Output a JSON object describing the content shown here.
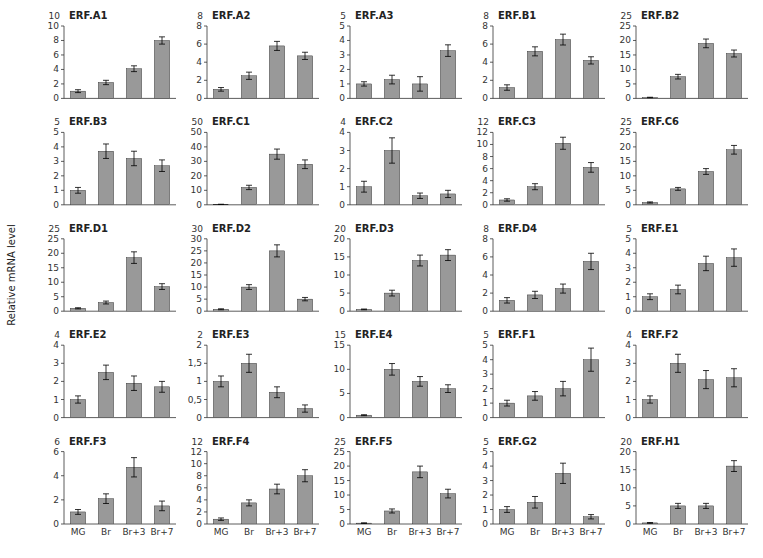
{
  "chart_data": [
    {
      "type": "bar",
      "title": "ERF.A1",
      "categories": [
        null,
        null,
        null,
        null
      ],
      "values": [
        1.0,
        2.2,
        4.1,
        8.0
      ],
      "errors": [
        0.2,
        0.3,
        0.4,
        0.5
      ],
      "color": "#999999",
      "ylim": [
        0,
        10
      ],
      "yticks": [
        0,
        2,
        4,
        6,
        8,
        10
      ]
    },
    {
      "type": "bar",
      "title": "ERF.A2",
      "categories": [
        null,
        null,
        null,
        null
      ],
      "values": [
        1.0,
        2.5,
        5.8,
        4.7
      ],
      "errors": [
        0.2,
        0.4,
        0.5,
        0.4
      ],
      "color": "#999999",
      "ylim": [
        0,
        8
      ],
      "yticks": [
        0,
        2,
        4,
        6,
        8
      ]
    },
    {
      "type": "bar",
      "title": "ERF.A3",
      "categories": [
        null,
        null,
        null,
        null
      ],
      "values": [
        1.0,
        1.3,
        1.0,
        3.3
      ],
      "errors": [
        0.15,
        0.3,
        0.5,
        0.4
      ],
      "color": "#999999",
      "ylim": [
        0,
        5
      ],
      "yticks": [
        0,
        1,
        2,
        3,
        4,
        5
      ]
    },
    {
      "type": "bar",
      "title": "ERF.B1",
      "categories": [
        null,
        null,
        null,
        null
      ],
      "values": [
        1.2,
        5.2,
        6.5,
        4.2
      ],
      "errors": [
        0.3,
        0.5,
        0.6,
        0.4
      ],
      "color": "#999999",
      "ylim": [
        0,
        8
      ],
      "yticks": [
        0,
        2,
        4,
        6,
        8
      ]
    },
    {
      "type": "bar",
      "title": "ERF.B2",
      "categories": [
        null,
        null,
        null,
        null
      ],
      "values": [
        0.3,
        7.5,
        19.0,
        15.5
      ],
      "errors": [
        0.1,
        0.8,
        1.5,
        1.2
      ],
      "color": "#999999",
      "ylim": [
        0,
        25
      ],
      "yticks": [
        0,
        5,
        10,
        15,
        20,
        25
      ]
    },
    {
      "type": "bar",
      "title": "ERF.B3",
      "categories": [
        null,
        null,
        null,
        null
      ],
      "values": [
        1.0,
        3.7,
        3.2,
        2.7
      ],
      "errors": [
        0.2,
        0.5,
        0.5,
        0.4
      ],
      "color": "#999999",
      "ylim": [
        0,
        5
      ],
      "yticks": [
        0,
        1,
        2,
        3,
        4,
        5
      ]
    },
    {
      "type": "bar",
      "title": "ERF.C1",
      "categories": [
        null,
        null,
        null,
        null
      ],
      "values": [
        0.3,
        12.0,
        35.0,
        28.0
      ],
      "errors": [
        0.1,
        1.5,
        3.5,
        3.0
      ],
      "color": "#999999",
      "ylim": [
        0,
        50
      ],
      "yticks": [
        0,
        10,
        20,
        30,
        40,
        50
      ]
    },
    {
      "type": "bar",
      "title": "ERF.C2",
      "categories": [
        null,
        null,
        null,
        null
      ],
      "values": [
        1.0,
        3.0,
        0.5,
        0.6
      ],
      "errors": [
        0.3,
        0.7,
        0.15,
        0.2
      ],
      "color": "#999999",
      "ylim": [
        0,
        4
      ],
      "yticks": [
        0,
        1,
        2,
        3,
        4
      ]
    },
    {
      "type": "bar",
      "title": "ERF.C3",
      "categories": [
        null,
        null,
        null,
        null
      ],
      "values": [
        0.8,
        3.0,
        10.2,
        6.2
      ],
      "errors": [
        0.2,
        0.5,
        1.0,
        0.8
      ],
      "color": "#999999",
      "ylim": [
        0,
        12
      ],
      "yticks": [
        0,
        2,
        4,
        6,
        8,
        10,
        12
      ]
    },
    {
      "type": "bar",
      "title": "ERF.C6",
      "categories": [
        null,
        null,
        null,
        null
      ],
      "values": [
        0.8,
        5.5,
        11.5,
        19.0
      ],
      "errors": [
        0.2,
        0.5,
        1.0,
        1.5
      ],
      "color": "#999999",
      "ylim": [
        0,
        25
      ],
      "yticks": [
        0,
        5,
        10,
        15,
        20,
        25
      ]
    },
    {
      "type": "bar",
      "title": "ERF.D1",
      "ylabel": "Relative mRNA level",
      "categories": [
        null,
        null,
        null,
        null
      ],
      "values": [
        1.0,
        3.0,
        18.5,
        8.5
      ],
      "errors": [
        0.2,
        0.5,
        2.0,
        1.0
      ],
      "color": "#999999",
      "ylim": [
        0,
        25
      ],
      "yticks": [
        0,
        5,
        10,
        15,
        20,
        25
      ]
    },
    {
      "type": "bar",
      "title": "ERF.D2",
      "categories": [
        null,
        null,
        null,
        null
      ],
      "values": [
        0.8,
        10.0,
        25.0,
        5.0
      ],
      "errors": [
        0.2,
        1.0,
        2.5,
        0.7
      ],
      "color": "#999999",
      "ylim": [
        0,
        30
      ],
      "yticks": [
        0,
        5,
        10,
        15,
        20,
        25,
        30
      ]
    },
    {
      "type": "bar",
      "title": "ERF.D3",
      "categories": [
        null,
        null,
        null,
        null
      ],
      "values": [
        0.5,
        5.0,
        14.0,
        15.5
      ],
      "errors": [
        0.1,
        0.8,
        1.5,
        1.5
      ],
      "color": "#999999",
      "ylim": [
        0,
        20
      ],
      "yticks": [
        0,
        5,
        10,
        15,
        20
      ]
    },
    {
      "type": "bar",
      "title": "ERF.D4",
      "categories": [
        null,
        null,
        null,
        null
      ],
      "values": [
        1.2,
        1.8,
        2.5,
        5.5
      ],
      "errors": [
        0.3,
        0.4,
        0.5,
        0.9
      ],
      "color": "#999999",
      "ylim": [
        0,
        8
      ],
      "yticks": [
        0,
        2,
        4,
        6,
        8
      ]
    },
    {
      "type": "bar",
      "title": "ERF.E1",
      "categories": [
        null,
        null,
        null,
        null
      ],
      "values": [
        1.0,
        1.5,
        3.3,
        3.7
      ],
      "errors": [
        0.2,
        0.3,
        0.5,
        0.6
      ],
      "color": "#999999",
      "ylim": [
        0,
        5
      ],
      "yticks": [
        0,
        1,
        2,
        3,
        4,
        5
      ]
    },
    {
      "type": "bar",
      "title": "ERF.E2",
      "categories": [
        null,
        null,
        null,
        null
      ],
      "values": [
        1.0,
        2.5,
        1.9,
        1.7
      ],
      "errors": [
        0.2,
        0.4,
        0.4,
        0.3
      ],
      "color": "#999999",
      "ylim": [
        0,
        4
      ],
      "yticks": [
        0,
        1,
        2,
        3,
        4
      ]
    },
    {
      "type": "bar",
      "title": "ERF.E3",
      "categories": [
        null,
        null,
        null,
        null
      ],
      "values": [
        1.0,
        1.5,
        0.7,
        0.25
      ],
      "errors": [
        0.15,
        0.25,
        0.15,
        0.1
      ],
      "color": "#999999",
      "ylim": [
        0,
        2
      ],
      "yticks": [
        0,
        {
          "value": 0.5,
          "label": "0,5"
        },
        1,
        {
          "value": 1.5,
          "label": "1,5"
        },
        2
      ]
    },
    {
      "type": "bar",
      "title": "ERF.E4",
      "categories": [
        null,
        null,
        null,
        null
      ],
      "values": [
        0.5,
        10.0,
        7.5,
        6.0
      ],
      "errors": [
        0.1,
        1.2,
        1.0,
        0.8
      ],
      "color": "#999999",
      "ylim": [
        0,
        15
      ],
      "yticks": [
        0,
        5,
        10,
        15
      ]
    },
    {
      "type": "bar",
      "title": "ERF.F1",
      "categories": [
        null,
        null,
        null,
        null
      ],
      "values": [
        1.0,
        1.5,
        2.0,
        4.0
      ],
      "errors": [
        0.2,
        0.3,
        0.5,
        0.8
      ],
      "color": "#999999",
      "ylim": [
        0,
        5
      ],
      "yticks": [
        0,
        1,
        2,
        3,
        4,
        5
      ]
    },
    {
      "type": "bar",
      "title": "ERF.F2",
      "categories": [
        null,
        null,
        null,
        null
      ],
      "values": [
        1.0,
        3.0,
        2.1,
        2.2
      ],
      "errors": [
        0.2,
        0.5,
        0.5,
        0.5
      ],
      "color": "#999999",
      "ylim": [
        0,
        4
      ],
      "yticks": [
        0,
        1,
        2,
        3,
        4
      ]
    },
    {
      "type": "bar",
      "title": "ERF.F3",
      "categories": [
        "MG",
        "Br",
        "Br+3",
        "Br+7"
      ],
      "values": [
        1.0,
        2.1,
        4.7,
        1.5
      ],
      "errors": [
        0.2,
        0.4,
        0.8,
        0.4
      ],
      "color": "#999999",
      "ylim": [
        0,
        6
      ],
      "yticks": [
        0,
        2,
        4,
        6
      ]
    },
    {
      "type": "bar",
      "title": "ERF.F4",
      "categories": [
        "MG",
        "Br",
        "Br+3",
        "Br+7"
      ],
      "values": [
        0.8,
        3.5,
        5.8,
        8.0
      ],
      "errors": [
        0.2,
        0.5,
        0.8,
        1.0
      ],
      "color": "#999999",
      "ylim": [
        0,
        12
      ],
      "yticks": [
        0,
        2,
        4,
        6,
        8,
        10,
        12
      ]
    },
    {
      "type": "bar",
      "title": "ERF.F5",
      "categories": [
        "MG",
        "Br",
        "Br+3",
        "Br+7"
      ],
      "values": [
        0.3,
        4.5,
        18.0,
        10.5
      ],
      "errors": [
        0.1,
        0.7,
        2.0,
        1.5
      ],
      "color": "#999999",
      "ylim": [
        0,
        25
      ],
      "yticks": [
        0,
        5,
        10,
        15,
        20,
        25
      ]
    },
    {
      "type": "bar",
      "title": "ERF.G2",
      "categories": [
        "MG",
        "Br",
        "Br+3",
        "Br+7"
      ],
      "values": [
        1.0,
        1.5,
        3.5,
        0.5
      ],
      "errors": [
        0.2,
        0.4,
        0.7,
        0.15
      ],
      "color": "#999999",
      "ylim": [
        0,
        5
      ],
      "yticks": [
        0,
        1,
        2,
        3,
        4,
        5
      ]
    },
    {
      "type": "bar",
      "title": "ERF.H1",
      "categories": [
        "MG",
        "Br",
        "Br+3",
        "Br+7"
      ],
      "values": [
        0.3,
        5.0,
        5.0,
        16.0
      ],
      "errors": [
        0.1,
        0.7,
        0.7,
        1.5
      ],
      "color": "#999999",
      "ylim": [
        0,
        20
      ],
      "yticks": [
        0,
        5,
        10,
        15,
        20
      ]
    }
  ]
}
